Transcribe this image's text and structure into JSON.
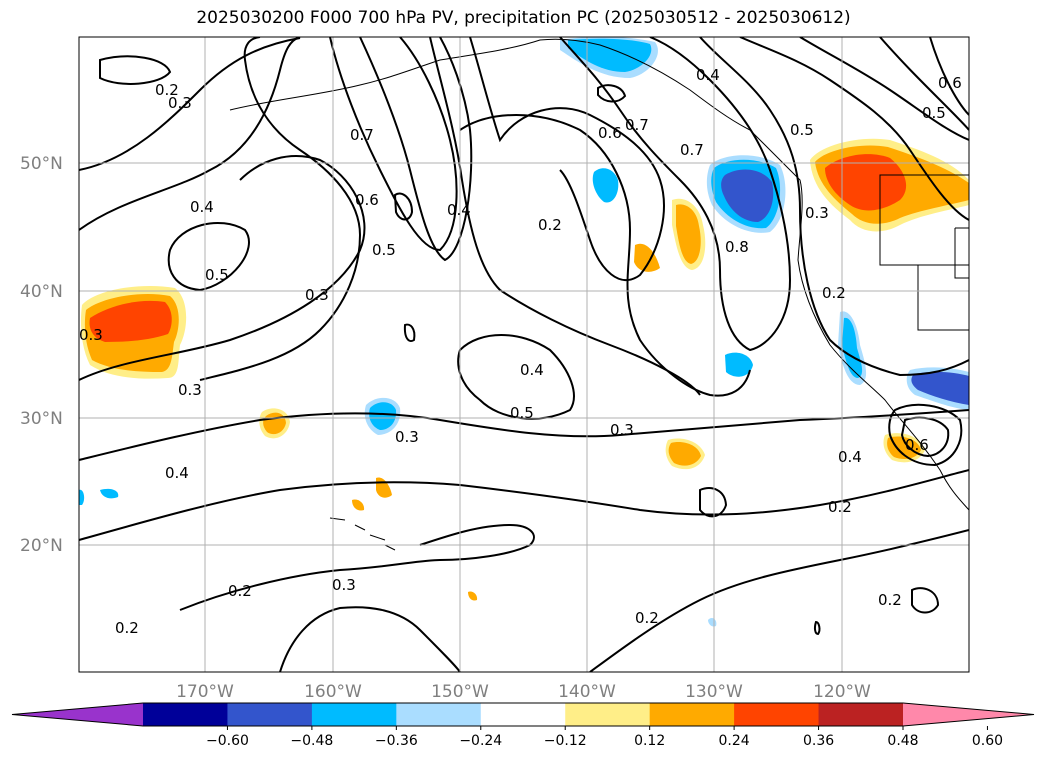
{
  "title": "2025030200 F000 700 hPa PV, precipitation PC (2025030512 - 2025030612)",
  "lat_labels": [
    "50°N",
    "40°N",
    "30°N",
    "20°N"
  ],
  "lon_labels": [
    "170°W",
    "160°W",
    "150°W",
    "140°W",
    "130°W",
    "120°W"
  ],
  "colorbar": {
    "colors": [
      "#9933cc",
      "#000099",
      "#3355cc",
      "#00bbff",
      "#aaddff",
      "#ffffff",
      "#ffee88",
      "#ffaa00",
      "#ff4400",
      "#bb2222",
      "#ff88aa"
    ],
    "tick_labels": [
      "−0.60",
      "−0.48",
      "−0.36",
      "−0.24",
      "−0.12",
      "0.12",
      "0.24",
      "0.36",
      "0.48",
      "0.60"
    ]
  },
  "contour_labels": [
    "0.2",
    "0.3",
    "0.4",
    "0.5",
    "0.6",
    "0.7",
    "0.8"
  ]
}
